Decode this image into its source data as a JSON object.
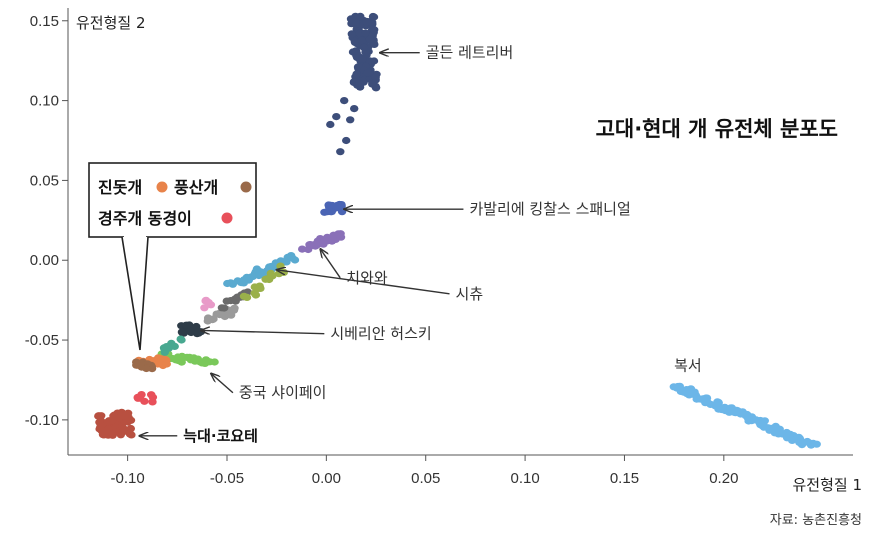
{
  "chart_data": {
    "type": "scatter",
    "title": "고대·현대 개 유전체 분포도",
    "xlabel": "유전형질 1",
    "ylabel": "유전형질 2",
    "xlim": [
      -0.13,
      0.265
    ],
    "ylim": [
      -0.122,
      0.158
    ],
    "x_ticks": [
      -0.1,
      -0.05,
      0.0,
      0.05,
      0.1,
      0.15,
      0.2
    ],
    "x_tick_labels": [
      "-0.10",
      "-0.05",
      "0.00",
      "0.05",
      "0.10",
      "0.15",
      "0.20"
    ],
    "y_ticks": [
      0.15,
      0.1,
      0.05,
      0.0,
      -0.05,
      -0.1
    ],
    "y_tick_labels": [
      "0.15",
      "0.10",
      "0.05",
      "0.00",
      "-0.05",
      "-0.10"
    ],
    "grid": false,
    "source": "자료: 농촌진흥청",
    "legend": {
      "placement": "left",
      "items": [
        {
          "label": "진돗개",
          "color": "#e8834a"
        },
        {
          "label": "풍산개",
          "color": "#9a6a4a"
        },
        {
          "label": "경주개 동경이",
          "color": "#e8505a"
        }
      ]
    },
    "series": [
      {
        "name": "골든 레트리버",
        "color": "#3d4e7a",
        "shape": "column",
        "x_range": [
          0.014,
          0.026
        ],
        "y_range": [
          0.108,
          0.153
        ],
        "count": 120,
        "extras": [
          [
            0.009,
            0.1
          ],
          [
            0.014,
            0.095
          ],
          [
            0.005,
            0.09
          ],
          [
            0.002,
            0.085
          ],
          [
            0.012,
            0.088
          ],
          [
            0.01,
            0.075
          ],
          [
            0.007,
            0.068
          ]
        ]
      },
      {
        "name": "카발리에 킹찰스 스패니얼",
        "color": "#4a64b4",
        "shape": "blob",
        "x_range": [
          -0.001,
          0.008
        ],
        "y_range": [
          0.03,
          0.035
        ],
        "count": 24
      },
      {
        "name": "치와와",
        "color": "#8a70b8",
        "shape": "line",
        "from": [
          -0.011,
          0.008
        ],
        "to": [
          0.007,
          0.016
        ],
        "count": 28
      },
      {
        "name": "시츄",
        "color": "#5aaad0",
        "shape": "line",
        "from": [
          -0.048,
          -0.015
        ],
        "to": [
          -0.016,
          0.002
        ],
        "count": 34
      },
      {
        "name": "시베리안 허스키",
        "color": "#2e3c48",
        "shape": "blob",
        "x_range": [
          -0.073,
          -0.063
        ],
        "y_range": [
          -0.046,
          -0.04
        ],
        "count": 20
      },
      {
        "name": "중국 샤이페이",
        "color": "#7ac85a",
        "shape": "line",
        "from": [
          -0.084,
          -0.06
        ],
        "to": [
          -0.058,
          -0.064
        ],
        "count": 24
      },
      {
        "name": "늑대·코요테",
        "color": "#b85040",
        "shape": "blob",
        "x_range": [
          -0.115,
          -0.098
        ],
        "y_range": [
          -0.11,
          -0.095
        ],
        "count": 70
      },
      {
        "name": "복서",
        "color": "#6cb6e8",
        "shape": "line",
        "from": [
          0.175,
          -0.079
        ],
        "to": [
          0.245,
          -0.116
        ],
        "count": 95
      },
      {
        "name": "진돗개",
        "color": "#e8834a",
        "shape": "blob",
        "x_range": [
          -0.095,
          -0.08
        ],
        "y_range": [
          -0.066,
          -0.061
        ],
        "count": 40
      },
      {
        "name": "풍산개",
        "color": "#9a6a4a",
        "shape": "blob",
        "x_range": [
          -0.096,
          -0.087
        ],
        "y_range": [
          -0.068,
          -0.063
        ],
        "count": 12
      },
      {
        "name": "경주개 동경이",
        "color": "#e8505a",
        "shape": "blob",
        "x_range": [
          -0.098,
          -0.086
        ],
        "y_range": [
          -0.089,
          -0.084
        ],
        "count": 8
      },
      {
        "name": "",
        "color": "#9a9a9a",
        "shape": "line",
        "from": [
          -0.06,
          -0.037
        ],
        "to": [
          -0.046,
          -0.031
        ],
        "count": 16
      },
      {
        "name": "",
        "color": "#6a6a6a",
        "shape": "line",
        "from": [
          -0.052,
          -0.029
        ],
        "to": [
          -0.04,
          -0.02
        ],
        "count": 12
      },
      {
        "name": "",
        "color": "#9ab04a",
        "shape": "line",
        "from": [
          -0.04,
          -0.024
        ],
        "to": [
          -0.022,
          -0.005
        ],
        "count": 16
      },
      {
        "name": "",
        "color": "#e89ac8",
        "shape": "blob",
        "x_range": [
          -0.063,
          -0.057
        ],
        "y_range": [
          -0.03,
          -0.025
        ],
        "count": 5
      },
      {
        "name": "",
        "color": "#48a890",
        "shape": "line",
        "from": [
          -0.082,
          -0.057
        ],
        "to": [
          -0.074,
          -0.05
        ],
        "count": 8
      }
    ],
    "annotations": [
      {
        "label": "골든 레트리버",
        "bold": false,
        "text_at": [
          0.05,
          0.13
        ],
        "arrow_to": [
          0.027,
          0.13
        ]
      },
      {
        "label": "카발리에 킹찰스 스패니얼",
        "bold": false,
        "text_at": [
          0.072,
          0.032
        ],
        "arrow_to": [
          0.009,
          0.032
        ]
      },
      {
        "label": "치와와",
        "bold": false,
        "text_at": [
          0.01,
          -0.011
        ],
        "arrow_to": [
          -0.003,
          0.007
        ]
      },
      {
        "label": "시츄",
        "bold": false,
        "text_at": [
          0.065,
          -0.021
        ],
        "arrow_to": [
          -0.025,
          -0.006
        ]
      },
      {
        "label": "시베리안 허스키",
        "bold": false,
        "text_at": [
          0.002,
          -0.046
        ],
        "arrow_to": [
          -0.063,
          -0.044
        ]
      },
      {
        "label": "중국 샤이페이",
        "bold": false,
        "text_at": [
          -0.044,
          -0.083
        ],
        "arrow_to": [
          -0.058,
          -0.071
        ]
      },
      {
        "label": "늑대·코요테",
        "bold": true,
        "text_at": [
          -0.072,
          -0.11
        ],
        "arrow_to": [
          -0.094,
          -0.11
        ]
      },
      {
        "label": "복서",
        "bold": false,
        "text_at": [
          0.175,
          -0.066
        ],
        "arrow_to": null
      }
    ]
  }
}
